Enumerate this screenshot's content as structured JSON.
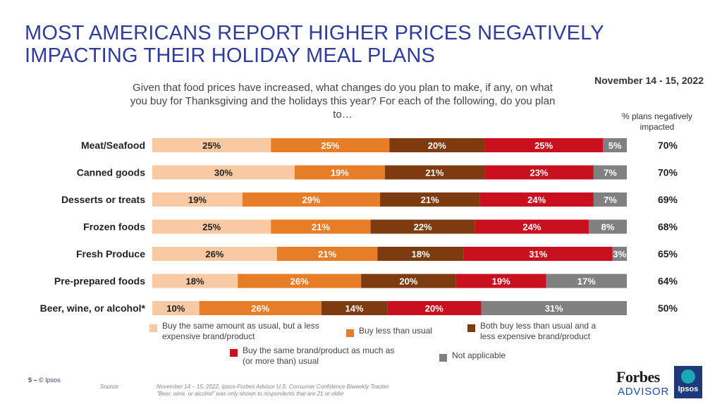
{
  "slide": {
    "title": "MOST AMERICANS REPORT HIGHER PRICES NEGATIVELY IMPACTING THEIR HOLIDAY MEAL PLANS",
    "date": "November 14 - 15, 2022",
    "question": "Given that food prices have increased, what changes do you plan to make, if any, on what you buy for Thanksgiving and the holidays this year? For each of the following, do you plan to…",
    "pct_header": "% plans negatively impacted"
  },
  "chart_data": {
    "type": "bar",
    "orientation": "horizontal",
    "stacked": true,
    "percent_scale": true,
    "categories": [
      "Meat/Seafood",
      "Canned goods",
      "Desserts or treats",
      "Frozen foods",
      "Fresh Produce",
      "Pre-prepared foods",
      "Beer, wine, or alcohol*"
    ],
    "series": [
      {
        "name": "Buy the same amount as usual, but a less expensive brand/product",
        "color": "#f8c9a2",
        "values": [
          25,
          30,
          19,
          25,
          26,
          18,
          10
        ]
      },
      {
        "name": "Buy less than usual",
        "color": "#e87d28",
        "values": [
          25,
          19,
          29,
          21,
          21,
          26,
          26
        ]
      },
      {
        "name": "Both buy less than usual and a less expensive brand/product",
        "color": "#7e3b10",
        "values": [
          20,
          21,
          21,
          22,
          18,
          20,
          14
        ]
      },
      {
        "name": "Buy the same brand/product as much as (or more than) usual",
        "color": "#c8101e",
        "values": [
          25,
          23,
          24,
          24,
          31,
          19,
          20
        ]
      },
      {
        "name": "Not applicable",
        "color": "#808080",
        "values": [
          5,
          7,
          7,
          8,
          3,
          17,
          31
        ]
      }
    ],
    "label_colors": [
      "#222222",
      "#ffffff",
      "#ffffff",
      "#ffffff",
      "#ffffff"
    ],
    "negatively_impacted": [
      "70%",
      "70%",
      "69%",
      "68%",
      "65%",
      "64%",
      "50%"
    ]
  },
  "legend": [
    {
      "label": "Buy the same amount as usual, but a less expensive brand/product",
      "color": "#f8c9a2"
    },
    {
      "label": "Buy less than usual",
      "color": "#e87d28"
    },
    {
      "label": "Both buy less than usual and a less expensive brand/product",
      "color": "#7e3b10"
    },
    {
      "label": "Buy the same brand/product as much as (or more than) usual",
      "color": "#c8101e"
    },
    {
      "label": "Not applicable",
      "color": "#808080"
    }
  ],
  "footer": {
    "page_number": "5 –",
    "copyright": "© Ipsos",
    "source_label": "Source:",
    "source_line1": "November 14 – 15, 2022, Ipsos-Forbes Advisor U.S. Consumer Confidence Biweekly Tracker",
    "source_line2": "\"Beer, wine, or alcohol\" was only shown to respondents that are 21 or older"
  },
  "logos": {
    "forbes": "Forbes",
    "advisor": "ADVISOR",
    "ipsos": "Ipsos"
  }
}
